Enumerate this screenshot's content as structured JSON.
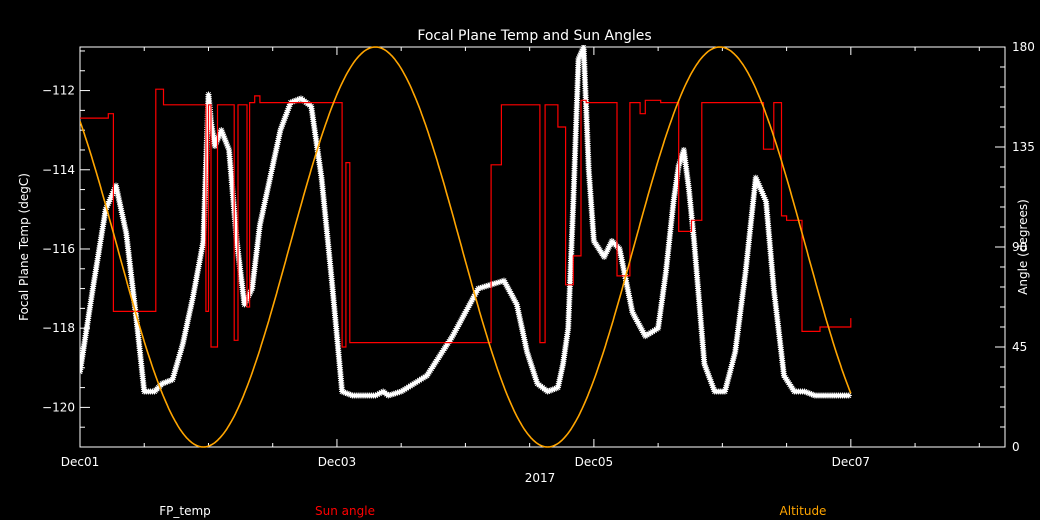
{
  "chart_data": {
    "type": "line",
    "title": "Focal Plane Temp and Sun Angles",
    "xlabel": "2017",
    "ylabel_left": "Focal Plane Temp (degC)",
    "ylabel_right": "Angle (degrees)",
    "x_tick_labels": [
      "Dec01",
      "Dec03",
      "Dec05",
      "Dec07"
    ],
    "x_tick_days": [
      1,
      3,
      5,
      7
    ],
    "xlim_days": [
      1,
      8.2
    ],
    "ylim_left": [
      -121,
      -110.9
    ],
    "ylim_right": [
      0,
      180
    ],
    "y_left_ticks": [
      -112,
      -114,
      -116,
      -118,
      -120
    ],
    "y_left_tick_labels": [
      "−112",
      "−114",
      "−116",
      "−118",
      "−120"
    ],
    "y_right_ticks": [
      0,
      45,
      90,
      135,
      180
    ],
    "y_right_tick_labels": [
      "0",
      "45",
      "90",
      "135",
      "180"
    ],
    "legend": [
      {
        "name": "FP_temp",
        "color": "#ffffff"
      },
      {
        "name": "Sun angle",
        "color": "#ff0000"
      },
      {
        "name": "Altitude",
        "color": "#ffa500"
      }
    ],
    "series": [
      {
        "name": "FP_temp",
        "axis": "left",
        "color": "#ffffff",
        "style": "asterisk",
        "x": [
          1.0,
          1.1,
          1.2,
          1.28,
          1.36,
          1.44,
          1.5,
          1.58,
          1.64,
          1.72,
          1.8,
          1.88,
          1.96,
          2.0,
          2.02,
          2.05,
          2.1,
          2.16,
          2.22,
          2.28,
          2.34,
          2.4,
          2.48,
          2.56,
          2.64,
          2.72,
          2.8,
          2.88,
          2.96,
          3.04,
          3.12,
          3.18,
          3.24,
          3.3,
          3.36,
          3.4,
          3.5,
          3.7,
          3.9,
          4.1,
          4.3,
          4.4,
          4.48,
          4.56,
          4.64,
          4.72,
          4.76,
          4.8,
          4.84,
          4.88,
          4.92,
          4.96,
          5.0,
          5.04,
          5.08,
          5.14,
          5.2,
          5.3,
          5.4,
          5.5,
          5.56,
          5.62,
          5.66,
          5.7,
          5.74,
          5.78,
          5.86,
          5.94,
          6.02,
          6.1,
          6.18,
          6.26,
          6.34,
          6.4,
          6.48,
          6.56,
          6.64,
          6.72,
          6.8,
          6.86,
          6.92,
          7.0
        ],
        "values": [
          -119.1,
          -117.0,
          -115.0,
          -114.4,
          -115.6,
          -117.8,
          -119.6,
          -119.6,
          -119.4,
          -119.3,
          -118.4,
          -117.2,
          -115.8,
          -112.1,
          -112.8,
          -113.4,
          -113.0,
          -113.5,
          -115.8,
          -117.4,
          -117.0,
          -115.4,
          -114.2,
          -113.0,
          -112.3,
          -112.2,
          -112.4,
          -114.2,
          -116.8,
          -119.6,
          -119.7,
          -119.7,
          -119.7,
          -119.7,
          -119.6,
          -119.7,
          -119.6,
          -119.2,
          -118.2,
          -117.0,
          -116.8,
          -117.4,
          -118.6,
          -119.4,
          -119.6,
          -119.5,
          -118.9,
          -118.0,
          -114.8,
          -111.2,
          -110.9,
          -114.0,
          -115.8,
          -116.0,
          -116.2,
          -115.8,
          -116.0,
          -117.6,
          -118.2,
          -118.0,
          -116.6,
          -114.8,
          -113.9,
          -113.5,
          -114.5,
          -115.8,
          -118.9,
          -119.6,
          -119.6,
          -118.6,
          -116.6,
          -114.2,
          -114.8,
          -117.0,
          -119.2,
          -119.6,
          -119.6,
          -119.7,
          -119.7,
          -119.7,
          -119.7,
          -119.7
        ]
      },
      {
        "name": "Sun angle",
        "axis": "right",
        "color": "#ff0000",
        "style": "line",
        "x": [
          1.0,
          1.22,
          1.22,
          1.26,
          1.26,
          1.59,
          1.59,
          1.65,
          1.65,
          1.98,
          1.98,
          2.0,
          2.0,
          2.02,
          2.02,
          2.07,
          2.07,
          2.2,
          2.2,
          2.23,
          2.23,
          2.3,
          2.3,
          2.32,
          2.32,
          2.36,
          2.36,
          2.4,
          2.4,
          3.04,
          3.04,
          3.07,
          3.07,
          3.1,
          3.1,
          4.12,
          4.12,
          4.2,
          4.2,
          4.28,
          4.28,
          4.58,
          4.58,
          4.62,
          4.62,
          4.72,
          4.72,
          4.78,
          4.78,
          4.84,
          4.84,
          4.9,
          4.9,
          4.94,
          4.94,
          5.18,
          5.18,
          5.28,
          5.28,
          5.36,
          5.36,
          5.4,
          5.4,
          5.52,
          5.52,
          5.66,
          5.66,
          5.76,
          5.76,
          5.84,
          5.84,
          6.02,
          6.02,
          6.16,
          6.16,
          6.32,
          6.32,
          6.4,
          6.4,
          6.46,
          6.46,
          6.5,
          6.5,
          6.62,
          6.62,
          6.76,
          6.76,
          6.88,
          6.88,
          7.0,
          7.0
        ],
        "values": [
          148,
          148,
          150,
          150,
          61,
          61,
          161,
          161,
          154,
          154,
          61,
          61,
          154,
          154,
          45,
          45,
          154,
          154,
          48,
          48,
          154,
          154,
          63,
          63,
          155,
          155,
          158,
          158,
          155,
          155,
          45,
          45,
          128,
          128,
          47,
          47,
          47,
          47,
          127,
          127,
          154,
          154,
          47,
          47,
          154,
          154,
          144,
          144,
          73,
          73,
          86,
          86,
          156,
          156,
          155,
          155,
          77,
          77,
          155,
          155,
          150,
          150,
          156,
          156,
          155,
          155,
          97,
          97,
          102,
          102,
          155,
          155,
          155,
          155,
          155,
          155,
          134,
          134,
          155,
          155,
          104,
          104,
          102,
          102,
          52,
          52,
          54,
          54,
          54,
          54,
          58
        ]
      },
      {
        "name": "Altitude",
        "axis": "right",
        "color": "#ffa500",
        "style": "line",
        "min_day": 1.96,
        "max_day": 3.3,
        "period_days": 2.68,
        "range": [
          0,
          180
        ],
        "x_start": 1.0,
        "x_end": 7.0
      }
    ],
    "grid": false,
    "legend_position": "bottom"
  }
}
